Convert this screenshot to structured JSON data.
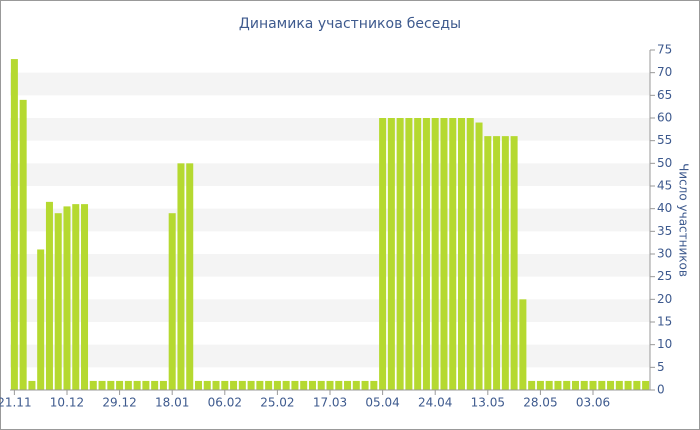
{
  "chart_data": {
    "type": "bar",
    "title": "Динамика участников беседы",
    "y_axis_label": "Число участников",
    "categories": [
      "21.11",
      null,
      null,
      null,
      null,
      null,
      "10.12",
      null,
      null,
      null,
      null,
      null,
      "29.12",
      null,
      null,
      null,
      null,
      null,
      "18.01",
      null,
      null,
      null,
      null,
      null,
      "06.02",
      null,
      null,
      null,
      null,
      null,
      "25.02",
      null,
      null,
      null,
      null,
      null,
      "17.03",
      null,
      null,
      null,
      null,
      null,
      "05.04",
      null,
      null,
      null,
      null,
      null,
      "24.04",
      null,
      null,
      null,
      null,
      null,
      "13.05",
      null,
      null,
      null,
      null,
      null,
      "28.05",
      null,
      null,
      null,
      null,
      null,
      "03.06",
      null,
      null,
      null,
      null,
      null,
      null
    ],
    "values": [
      73,
      64,
      2,
      31,
      41.5,
      39,
      40.5,
      41,
      41,
      2,
      2,
      2,
      2,
      2,
      2,
      2,
      2,
      2,
      39,
      50,
      50,
      2,
      2,
      2,
      2,
      2,
      2,
      2,
      2,
      2,
      2,
      2,
      2,
      2,
      2,
      2,
      2,
      2,
      2,
      2,
      2,
      2,
      60,
      60,
      60,
      60,
      60,
      60,
      60,
      60,
      60,
      60,
      60,
      59,
      56,
      56,
      56,
      56,
      20,
      2,
      2,
      2,
      2,
      2,
      2,
      2,
      2,
      2,
      2,
      2,
      2,
      2,
      2
    ],
    "color": "#b5d930",
    "ylim": [
      0,
      75
    ],
    "yticks": [
      0,
      5,
      10,
      15,
      20,
      25,
      30,
      35,
      40,
      45,
      50,
      55,
      60,
      65,
      70,
      75
    ],
    "y_axis_side": "right",
    "grid": "zebra"
  }
}
